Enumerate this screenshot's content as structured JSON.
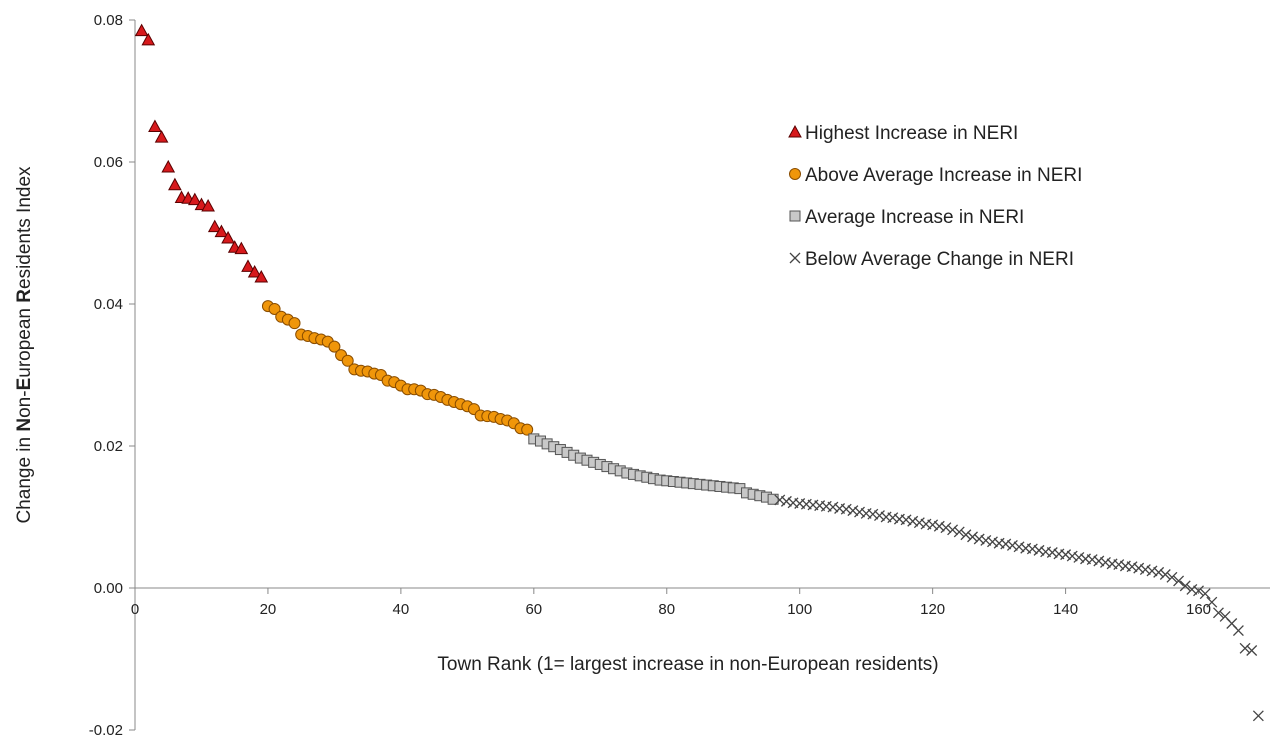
{
  "chart_data": {
    "type": "scatter",
    "title": "",
    "xlabel": "Town Rank (1= largest increase in non-European residents)",
    "ylabel": "Change in Non-European Residents Index",
    "ylabel_parts": [
      {
        "t": "Change in ",
        "b": false
      },
      {
        "t": "N",
        "b": true
      },
      {
        "t": "on-",
        "b": false
      },
      {
        "t": "E",
        "b": true
      },
      {
        "t": "uropean ",
        "b": false
      },
      {
        "t": "R",
        "b": true
      },
      {
        "t": "esidents Index",
        "b": false
      }
    ],
    "xlim": [
      0,
      170
    ],
    "ylim": [
      -0.02,
      0.08
    ],
    "x_ticks": [
      0,
      20,
      40,
      60,
      80,
      100,
      120,
      140,
      160
    ],
    "y_ticks": [
      -0.02,
      0.0,
      0.02,
      0.04,
      0.06,
      0.08
    ],
    "y_tick_labels": [
      "-0.02",
      "0.00",
      "0.02",
      "0.04",
      "0.06",
      "0.08"
    ],
    "x_tick_labels": [
      "0",
      "20",
      "40",
      "60",
      "80",
      "100",
      "120",
      "140",
      "160"
    ],
    "grid": false,
    "legend_position": "top-right",
    "series": [
      {
        "name": "Highest Increase in NERI",
        "marker": "triangle",
        "color": "#d7191c",
        "x": [
          1,
          2,
          3,
          4,
          5,
          6,
          7,
          8,
          9,
          10,
          11,
          12,
          13,
          14,
          15,
          16,
          17,
          18,
          19
        ],
        "y": [
          0.0785,
          0.0772,
          0.065,
          0.0635,
          0.0593,
          0.0568,
          0.055,
          0.0549,
          0.0547,
          0.054,
          0.0538,
          0.0509,
          0.0502,
          0.0493,
          0.048,
          0.0478,
          0.0453,
          0.0445,
          0.0438
        ]
      },
      {
        "name": "Above Average Increase in NERI",
        "marker": "circle",
        "color": "#f0960a",
        "x": [
          20,
          21,
          22,
          23,
          24,
          25,
          26,
          27,
          28,
          29,
          30,
          31,
          32,
          33,
          34,
          35,
          36,
          37,
          38,
          39,
          40,
          41,
          42,
          43,
          44,
          45,
          46,
          47,
          48,
          49,
          50,
          51,
          52,
          53,
          54,
          55,
          56,
          57,
          58,
          59
        ],
        "y": [
          0.0397,
          0.0393,
          0.0382,
          0.0378,
          0.0373,
          0.0357,
          0.0355,
          0.0352,
          0.035,
          0.0347,
          0.034,
          0.0328,
          0.032,
          0.0308,
          0.0306,
          0.0305,
          0.0302,
          0.03,
          0.0292,
          0.029,
          0.0285,
          0.028,
          0.028,
          0.0278,
          0.0273,
          0.0272,
          0.0269,
          0.0265,
          0.0262,
          0.0259,
          0.0256,
          0.0252,
          0.0243,
          0.0242,
          0.0241,
          0.0238,
          0.0236,
          0.0232,
          0.0225,
          0.0223
        ]
      },
      {
        "name": "Average Increase in NERI",
        "marker": "square",
        "color": "#c8c8c8",
        "x": [
          60,
          61,
          62,
          63,
          64,
          65,
          66,
          67,
          68,
          69,
          70,
          71,
          72,
          73,
          74,
          75,
          76,
          77,
          78,
          79,
          80,
          81,
          82,
          83,
          84,
          85,
          86,
          87,
          88,
          89,
          90,
          91,
          92,
          93,
          94,
          95,
          96
        ],
        "y": [
          0.021,
          0.0207,
          0.0203,
          0.0199,
          0.0195,
          0.0191,
          0.0187,
          0.0183,
          0.018,
          0.0177,
          0.0174,
          0.0171,
          0.0168,
          0.0165,
          0.0162,
          0.016,
          0.0158,
          0.0156,
          0.0154,
          0.0152,
          0.0151,
          0.015,
          0.0149,
          0.0148,
          0.0147,
          0.0146,
          0.0145,
          0.0144,
          0.0143,
          0.0142,
          0.0141,
          0.014,
          0.0134,
          0.0132,
          0.013,
          0.0128,
          0.0125
        ]
      },
      {
        "name": "Below Average Change in NERI",
        "marker": "x",
        "color": "#444444",
        "x": [
          97,
          98,
          99,
          100,
          101,
          102,
          103,
          104,
          105,
          106,
          107,
          108,
          109,
          110,
          111,
          112,
          113,
          114,
          115,
          116,
          117,
          118,
          119,
          120,
          121,
          122,
          123,
          124,
          125,
          126,
          127,
          128,
          129,
          130,
          131,
          132,
          133,
          134,
          135,
          136,
          137,
          138,
          139,
          140,
          141,
          142,
          143,
          144,
          145,
          146,
          147,
          148,
          149,
          150,
          151,
          152,
          153,
          154,
          155,
          156,
          157,
          158,
          159,
          160,
          161,
          162,
          163,
          164,
          165,
          166,
          167,
          168,
          169
        ],
        "y": [
          0.0124,
          0.0122,
          0.012,
          0.0119,
          0.0118,
          0.0117,
          0.0116,
          0.0115,
          0.0114,
          0.0112,
          0.0111,
          0.0109,
          0.0107,
          0.0105,
          0.0104,
          0.0102,
          0.01,
          0.0099,
          0.0097,
          0.0096,
          0.0094,
          0.0092,
          0.009,
          0.0089,
          0.0087,
          0.0085,
          0.0082,
          0.0079,
          0.0075,
          0.0072,
          0.0069,
          0.0067,
          0.0065,
          0.0063,
          0.0062,
          0.006,
          0.0058,
          0.0056,
          0.0055,
          0.0053,
          0.0051,
          0.005,
          0.0048,
          0.0047,
          0.0045,
          0.0043,
          0.0041,
          0.004,
          0.0038,
          0.0036,
          0.0034,
          0.0033,
          0.0031,
          0.003,
          0.0028,
          0.0026,
          0.0024,
          0.0022,
          0.0019,
          0.0015,
          0.001,
          0.0003,
          -0.0002,
          -0.0004,
          -0.0008,
          -0.002,
          -0.0035,
          -0.004,
          -0.005,
          -0.006,
          -0.0085,
          -0.0088,
          -0.018
        ]
      }
    ]
  }
}
